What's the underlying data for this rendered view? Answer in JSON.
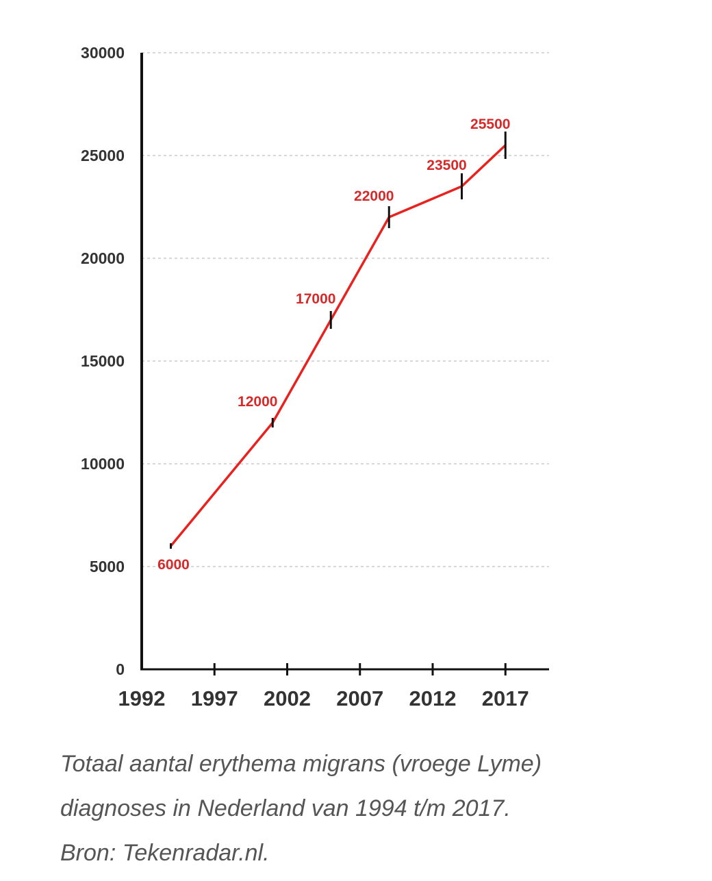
{
  "chart_data": {
    "type": "line",
    "x": [
      1994,
      2001,
      2005,
      2009,
      2014,
      2017
    ],
    "values": [
      6000,
      12000,
      17000,
      22000,
      23500,
      25500
    ],
    "data_labels": [
      "6000",
      "12000",
      "17000",
      "22000",
      "23500",
      "25500"
    ],
    "xticks": [
      1992,
      1997,
      2002,
      2007,
      2012,
      2017
    ],
    "yticks": [
      0,
      5000,
      10000,
      15000,
      20000,
      25000,
      30000
    ],
    "xlim": [
      1992,
      2020
    ],
    "ylim": [
      0,
      30000
    ],
    "grid": true,
    "colors": {
      "line": "#e8221f",
      "label": "#d62a2a",
      "axis": "#111111",
      "grid": "#cccccc",
      "tick_text": "#333333"
    }
  },
  "caption": {
    "lines": [
      "Totaal aantal erythema migrans (vroege Lyme)",
      "diagnoses in Nederland van 1994 t/m 2017.",
      "Bron: Tekenradar.nl."
    ]
  }
}
